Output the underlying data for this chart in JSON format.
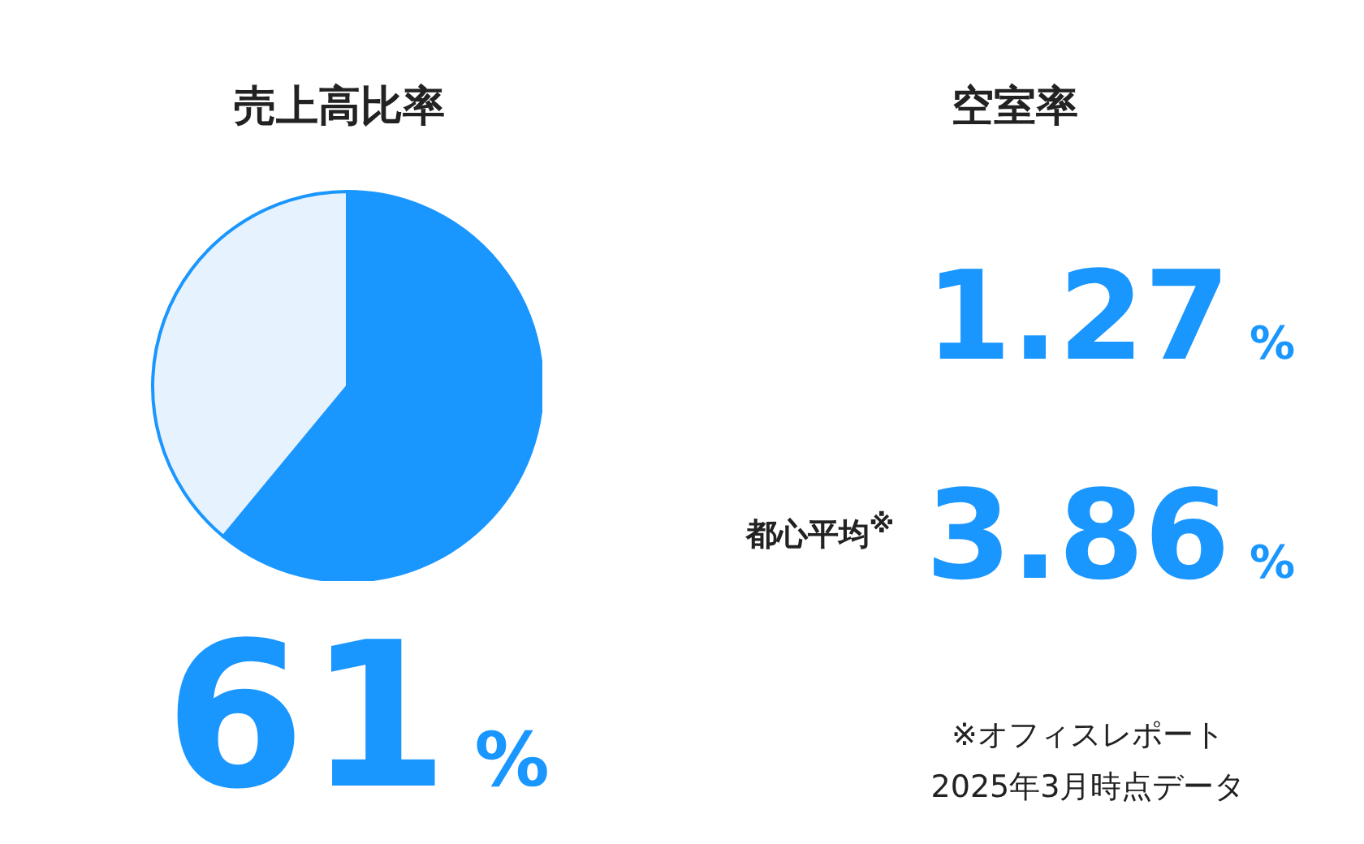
{
  "chart_data": [
    {
      "type": "pie",
      "title": "売上高比率",
      "categories": [
        null,
        null
      ],
      "values": [
        61,
        39
      ],
      "colors": [
        "#1a96ff",
        "#e6f2fd"
      ],
      "value_labels": [
        "61%",
        null
      ],
      "legend": false
    },
    {
      "type": "other",
      "title": "空室率",
      "categories": [
        null,
        "都心平均$^{※}$"
      ],
      "values": [
        1.27,
        3.86
      ],
      "value_labels": [
        "1.27%",
        "3.86%"
      ],
      "colors": [
        "#1a96ff",
        "#1a96ff"
      ],
      "annotations": [
        "※オフィスレポート",
        "2025年3月時点データ"
      ]
    }
  ]
}
